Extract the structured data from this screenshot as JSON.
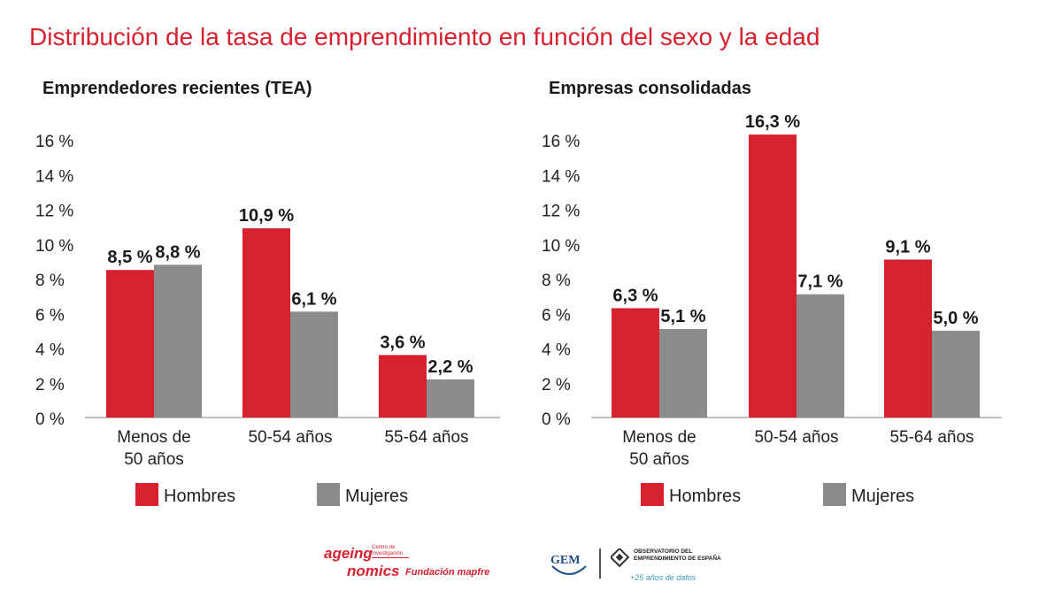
{
  "title": "Distribución de la tasa de emprendimiento en función del sexo y la edad",
  "colors": {
    "hombres": "#d8212f",
    "mujeres": "#8c8c8c",
    "title": "#d8212f"
  },
  "chart_data": [
    {
      "type": "bar",
      "title": "Emprendedores recientes (TEA)",
      "categories": [
        [
          "Menos de",
          "50 años"
        ],
        [
          "50-54 años"
        ],
        [
          "55-64 años"
        ]
      ],
      "series": [
        {
          "name": "Hombres",
          "values": [
            8.5,
            10.9,
            3.6
          ],
          "labels": [
            "8,5 %",
            "10,9 %",
            "3,6 %"
          ]
        },
        {
          "name": "Mujeres",
          "values": [
            8.8,
            6.1,
            2.2
          ],
          "labels": [
            "8,8 %",
            "6,1 %",
            "2,2 %"
          ]
        }
      ],
      "yticks": [
        "0 %",
        "2 %",
        "4 %",
        "6 %",
        "8 %",
        "10 %",
        "12 %",
        "14 %",
        "16 %"
      ],
      "ylim": [
        0,
        16
      ],
      "legend": "bottom"
    },
    {
      "type": "bar",
      "title": "Empresas consolidadas",
      "categories": [
        [
          "Menos de",
          "50 años"
        ],
        [
          "50-54 años"
        ],
        [
          "55-64 años"
        ]
      ],
      "series": [
        {
          "name": "Hombres",
          "values": [
            6.3,
            16.3,
            9.1
          ],
          "labels": [
            "6,3 %",
            "16,3 %",
            "9,1 %"
          ]
        },
        {
          "name": "Mujeres",
          "values": [
            5.1,
            7.1,
            5.0
          ],
          "labels": [
            "5,1 %",
            "7,1 %",
            "5,0 %"
          ]
        }
      ],
      "yticks": [
        "0 %",
        "2 %",
        "4 %",
        "6 %",
        "8 %",
        "10 %",
        "12 %",
        "14 %",
        "16 %"
      ],
      "ylim": [
        0,
        16
      ],
      "legend": "bottom"
    }
  ],
  "footer": {
    "ageing_line1": "ageing",
    "ageing_line2": "nomics",
    "ageing_small": "Centro de Investigación",
    "fundacion": "Fundación mapfre",
    "gem": "GEM",
    "obs": "OBSERVATORIO DEL EMPRENDIMIENTO DE ESPAÑA",
    "obs_tag": "+25 años de datos"
  }
}
